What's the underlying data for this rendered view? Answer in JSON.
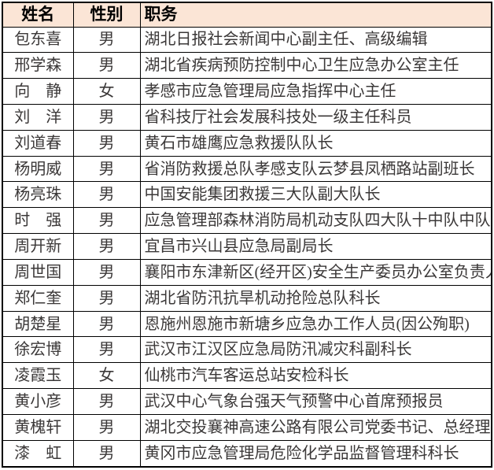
{
  "table": {
    "headers": {
      "name": "姓名",
      "gender": "性别",
      "position": "职务"
    },
    "header_bg_color": "#FBE5D6",
    "border_color": "#000000",
    "text_color": "#3B3838",
    "rows": [
      {
        "name": "包东喜",
        "gender": "男",
        "position": "湖北日报社会新闻中心副主任、高级编辑"
      },
      {
        "name": "邢学森",
        "gender": "男",
        "position": "湖北省疾病预防控制中心卫生应急办公室主任"
      },
      {
        "name": "向　静",
        "gender": "女",
        "position": "孝感市应急管理局应急指挥中心主任"
      },
      {
        "name": "刘　洋",
        "gender": "男",
        "position": "省科技厅社会发展科技处一级主任科员"
      },
      {
        "name": "刘道春",
        "gender": "男",
        "position": "黄石市雄鹰应急救援队队长"
      },
      {
        "name": "杨明威",
        "gender": "男",
        "position": "省消防救援总队孝感支队云梦县凤栖路站副班长"
      },
      {
        "name": "杨亮珠",
        "gender": "男",
        "position": "中国安能集团救援三大队副大队长"
      },
      {
        "name": "时　强",
        "gender": "男",
        "position": "应急管理部森林消防局机动支队四大队十中队中队长"
      },
      {
        "name": "周开新",
        "gender": "男",
        "position": "宜昌市兴山县应急局副局长"
      },
      {
        "name": "周世国",
        "gender": "男",
        "position": "襄阳市东津新区(经开区)安全生产委员办公室负责人"
      },
      {
        "name": "郑仁奎",
        "gender": "男",
        "position": "湖北省防汛抗旱机动抢险总队科长"
      },
      {
        "name": "胡楚星",
        "gender": "男",
        "position": "恩施州恩施市新塘乡应急办工作人员(因公殉职)"
      },
      {
        "name": "徐宏博",
        "gender": "男",
        "position": "武汉市江汉区应急局防汛减灾科副科长"
      },
      {
        "name": "凌霞玉",
        "gender": "女",
        "position": "仙桃市汽车客运总站安检科长"
      },
      {
        "name": "黄小彦",
        "gender": "男",
        "position": "武汉中心气象台强天气预警中心首席预报员"
      },
      {
        "name": "黄槐轩",
        "gender": "男",
        "position": "湖北交投襄神高速公路有限公司党委书记、总经理"
      },
      {
        "name": "漆　虹",
        "gender": "男",
        "position": "黄冈市应急管理局危险化学品监督管理科科长"
      }
    ]
  }
}
